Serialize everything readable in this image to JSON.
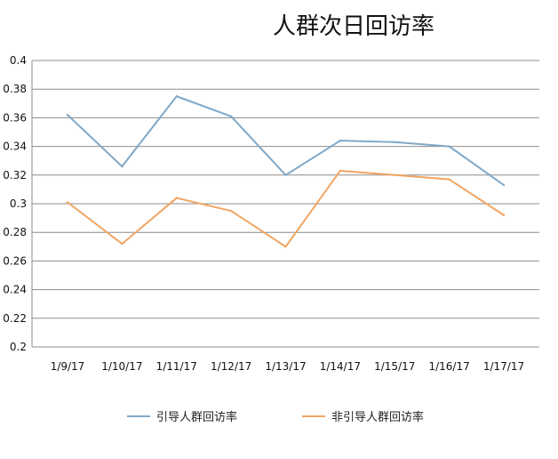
{
  "chart_data": {
    "type": "line",
    "title": "人群次日回访率",
    "xlabel": "",
    "ylabel": "",
    "categories": [
      "1/9/17",
      "1/10/17",
      "1/11/17",
      "1/12/17",
      "1/13/17",
      "1/14/17",
      "1/15/17",
      "1/16/17",
      "1/17/17"
    ],
    "y_ticks": [
      "0.2",
      "0.22",
      "0.24",
      "0.26",
      "0.28",
      "0.3",
      "0.32",
      "0.34",
      "0.36",
      "0.38",
      "0.4"
    ],
    "ylim": [
      0.2,
      0.4
    ],
    "grid": true,
    "legend_position": "bottom",
    "series": [
      {
        "name": "引导人群回访率",
        "color": "#7fa8c8",
        "values": [
          0.362,
          0.326,
          0.375,
          0.361,
          0.32,
          0.344,
          0.343,
          0.34,
          0.313
        ]
      },
      {
        "name": "非引导人群回访率",
        "color": "#f0a562",
        "values": [
          0.301,
          0.272,
          0.304,
          0.295,
          0.27,
          0.323,
          0.32,
          0.317,
          0.292
        ]
      }
    ]
  }
}
